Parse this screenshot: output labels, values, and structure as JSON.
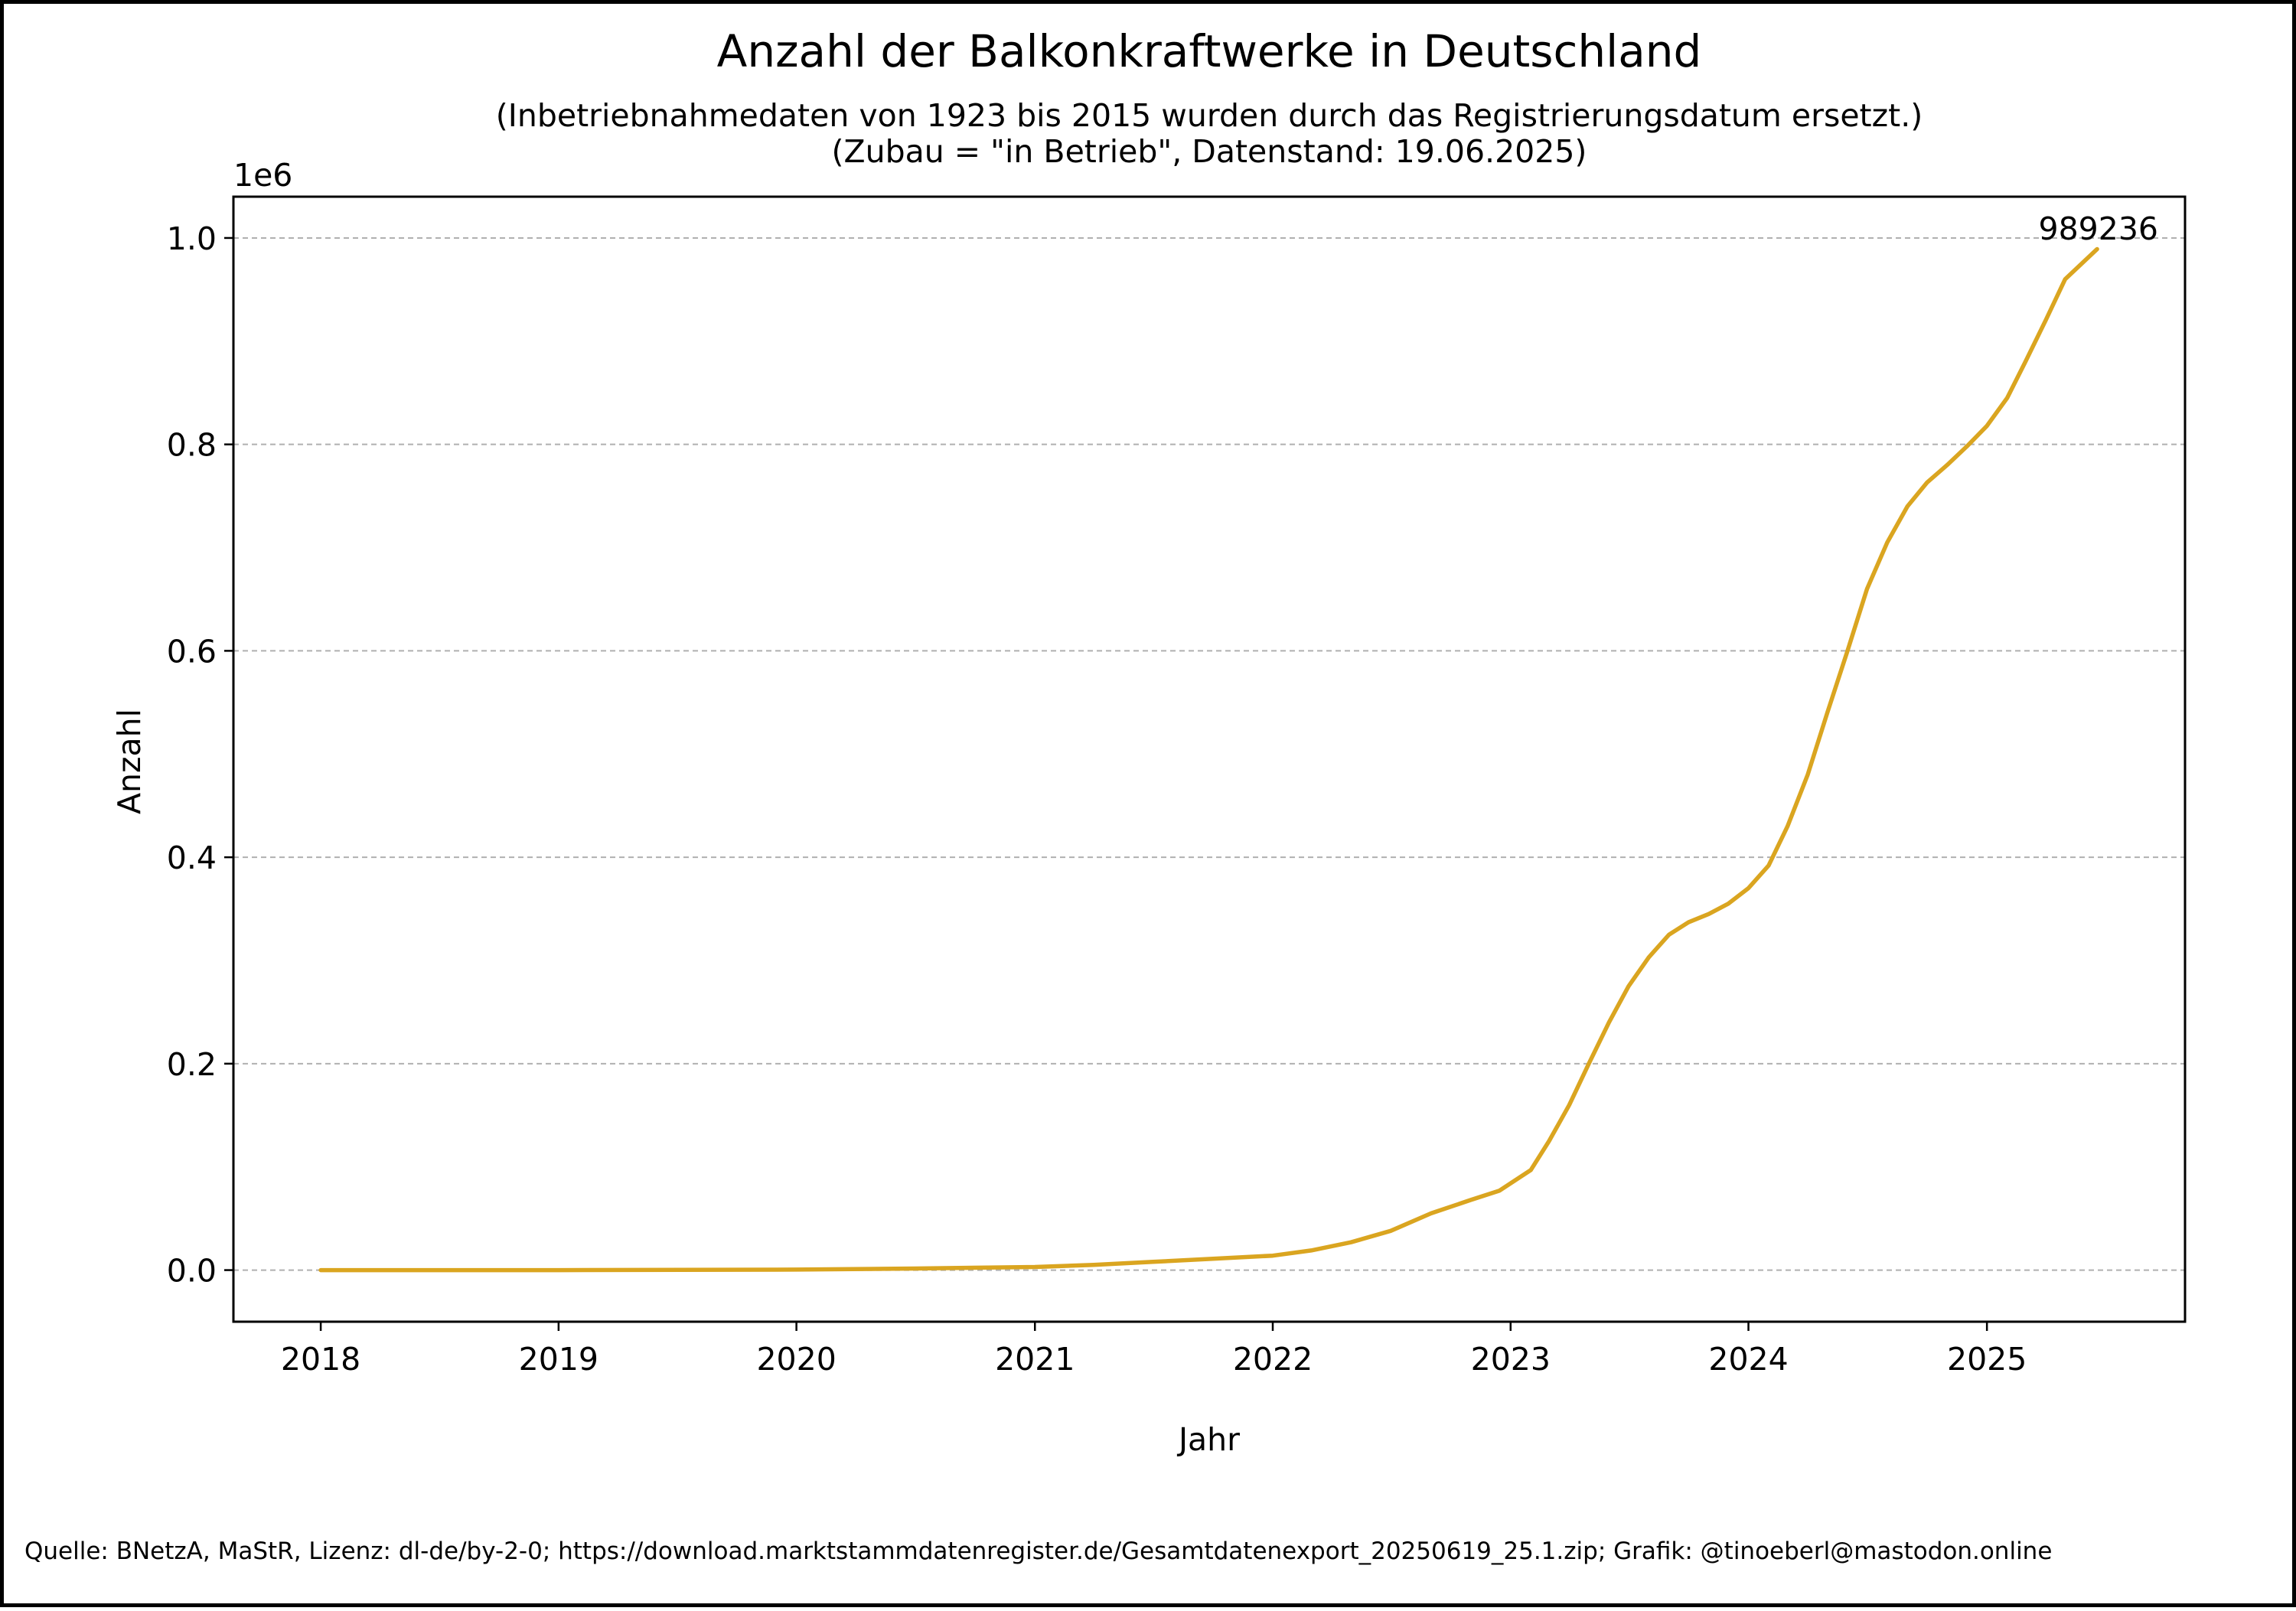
{
  "colors": {
    "line": "#DAA520",
    "grid": "#b0b0b0",
    "axis": "#000000",
    "background": "#ffffff"
  },
  "chart_data": {
    "type": "line",
    "title": "Anzahl der Balkonkraftwerke in Deutschland",
    "subtitle_lines": [
      "(Inbetriebnahmedaten von 1923 bis 2015 wurden durch das Registrierungsdatum ersetzt.)",
      "(Zubau = \"in Betrieb\", Datenstand: 19.06.2025)"
    ],
    "xlabel": "Jahr",
    "ylabel": "Anzahl",
    "y_offset_label": "1e6",
    "xlim": [
      "2017-08-20",
      "2025-11-01"
    ],
    "ylim": [
      -50000,
      1040000
    ],
    "x_ticks": [
      "2018",
      "2019",
      "2020",
      "2021",
      "2022",
      "2023",
      "2024",
      "2025"
    ],
    "y_ticks": [
      0,
      200000,
      400000,
      600000,
      800000,
      1000000
    ],
    "y_tick_labels": [
      "0.0",
      "0.2",
      "0.4",
      "0.6",
      "0.8",
      "1.0"
    ],
    "grid": {
      "y": true,
      "x": false,
      "style": "dashed"
    },
    "legend": "none",
    "end_label": "989236",
    "series": [
      {
        "x": [
          "2018-01-01",
          "2019-01-01",
          "2020-01-01",
          "2020-07-01",
          "2021-01-01",
          "2021-04-01",
          "2021-07-01",
          "2021-10-01",
          "2022-01-01",
          "2022-03-01",
          "2022-05-01",
          "2022-07-01",
          "2022-09-01",
          "2022-11-01",
          "2022-12-15",
          "2023-02-01",
          "2023-03-01",
          "2023-04-01",
          "2023-05-01",
          "2023-06-01",
          "2023-07-01",
          "2023-08-01",
          "2023-09-01",
          "2023-10-01",
          "2023-11-01",
          "2023-12-01",
          "2024-01-01",
          "2024-02-01",
          "2024-03-01",
          "2024-04-01",
          "2024-05-01",
          "2024-06-01",
          "2024-07-01",
          "2024-08-01",
          "2024-09-01",
          "2024-10-01",
          "2024-11-01",
          "2024-12-01",
          "2025-01-01",
          "2025-02-01",
          "2025-03-01",
          "2025-04-01",
          "2025-05-01",
          "2025-06-19"
        ],
        "values": [
          0,
          0,
          500,
          1500,
          3000,
          5000,
          8000,
          11000,
          14000,
          19000,
          27000,
          38000,
          55000,
          68000,
          77000,
          97000,
          125000,
          160000,
          200000,
          240000,
          275000,
          303000,
          325000,
          337000,
          345000,
          355000,
          370000,
          392000,
          430000,
          480000,
          540000,
          600000,
          660000,
          705000,
          740000,
          763000,
          780000,
          798000,
          818000,
          845000,
          880000,
          920000,
          960000,
          989236
        ]
      }
    ]
  }
}
